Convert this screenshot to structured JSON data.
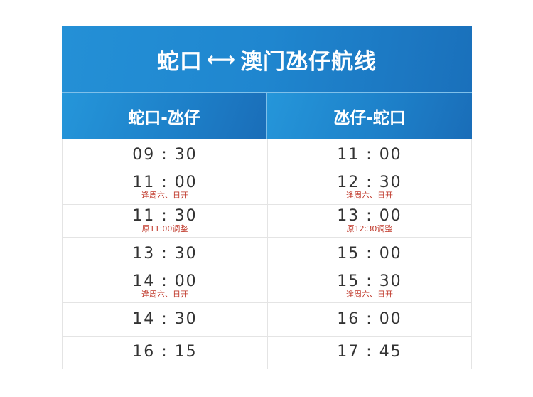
{
  "title": {
    "left": "蛇口",
    "arrow": "⟷",
    "right": "澳门氹仔航线"
  },
  "columns": [
    "蛇口-氹仔",
    "氹仔-蛇口"
  ],
  "rows": [
    [
      {
        "time": "09 : 30",
        "note": ""
      },
      {
        "time": "11 : 00",
        "note": ""
      }
    ],
    [
      {
        "time": "11 : 00",
        "note": "逢周六、日开"
      },
      {
        "time": "12 : 30",
        "note": "逢周六、日开"
      }
    ],
    [
      {
        "time": "11 : 30",
        "note": "原11:00调整"
      },
      {
        "time": "13 : 00",
        "note": "原12:30调整"
      }
    ],
    [
      {
        "time": "13 : 30",
        "note": ""
      },
      {
        "time": "15 : 00",
        "note": ""
      }
    ],
    [
      {
        "time": "14 : 00",
        "note": "逢周六、日开"
      },
      {
        "time": "15 : 30",
        "note": "逢周六、日开"
      }
    ],
    [
      {
        "time": "14 : 30",
        "note": ""
      },
      {
        "time": "16 : 00",
        "note": ""
      }
    ],
    [
      {
        "time": "16 : 15",
        "note": ""
      },
      {
        "time": "17 : 45",
        "note": ""
      }
    ]
  ],
  "colors": {
    "header_blue": "#1f86cf",
    "note_red": "#c0392b"
  }
}
